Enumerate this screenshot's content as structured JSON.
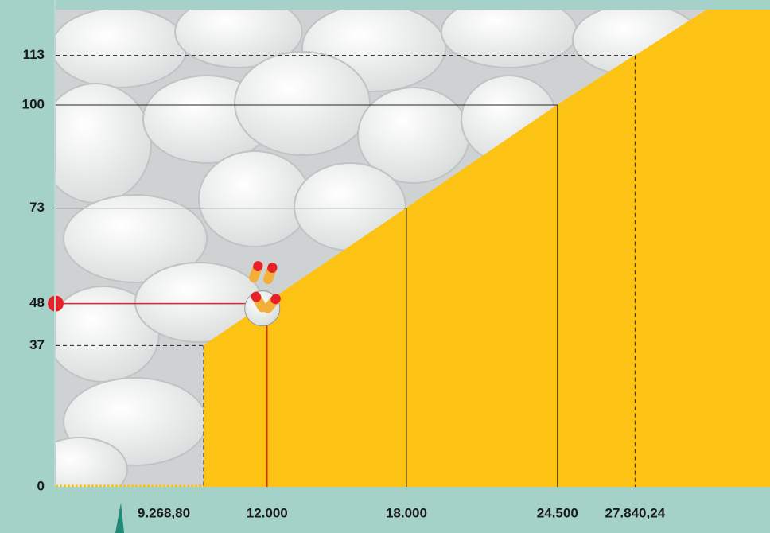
{
  "chart_data": {
    "type": "area",
    "x": [
      9268.8,
      18000,
      24500,
      27840.24
    ],
    "values": [
      37,
      73,
      100,
      113
    ],
    "color": "#fdc314",
    "xlim": [
      2900,
      33650
    ],
    "ylim": [
      0,
      125
    ],
    "xticks": [
      {
        "value": 9268.8,
        "label": "9.268,80"
      },
      {
        "value": 12000,
        "label": "12.000"
      },
      {
        "value": 18000,
        "label": "18.000"
      },
      {
        "value": 24500,
        "label": "24.500"
      },
      {
        "value": 27840.24,
        "label": "27.840,24"
      }
    ],
    "yticks": [
      0,
      37,
      48,
      73,
      100,
      113
    ],
    "highlight": {
      "x": 12000,
      "y": 48,
      "color": "#e8202a"
    }
  }
}
